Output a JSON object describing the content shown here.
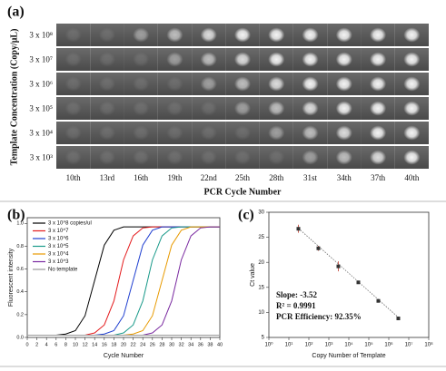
{
  "chart_data": [
    {
      "type": "image-grid",
      "title": "(a)",
      "row_labels": [
        "3 x 10⁸",
        "3 x 10⁷",
        "3 x 10⁶",
        "3 x 10⁵",
        "3 x 10⁴",
        "3 x 10³"
      ],
      "column_labels": [
        "10th",
        "13rd",
        "16th",
        "19th",
        "22nd",
        "25th",
        "28th",
        "31st",
        "34th",
        "37th",
        "40th"
      ],
      "xlabel": "PCR Cycle Number",
      "ylabel": "Template Concentration (Copy/μL)"
    },
    {
      "type": "line",
      "title": "(b)",
      "xlabel": "Cycle Number",
      "ylabel": "Fluorescent intensity",
      "x": [
        0,
        2,
        4,
        6,
        8,
        10,
        12,
        14,
        16,
        18,
        20,
        22,
        24,
        26,
        28,
        30,
        32,
        34,
        36,
        38,
        40
      ],
      "xlim": [
        0,
        40
      ],
      "ylim": [
        0,
        1.05
      ],
      "xticks": [
        0,
        2,
        4,
        6,
        8,
        10,
        12,
        14,
        16,
        18,
        20,
        22,
        24,
        26,
        28,
        30,
        32,
        34,
        36,
        38,
        40
      ],
      "yticks": [
        {
          "value": 0,
          "label": "0.0"
        },
        0.2,
        0.4,
        0.6,
        0.8,
        {
          "value": 1,
          "label": "1.0"
        }
      ],
      "legend": "upper left",
      "series": [
        {
          "name": "3 x 10^8 copies/ul",
          "color": "#000000",
          "values": [
            0.02,
            0.02,
            0.02,
            0.02,
            0.03,
            0.06,
            0.19,
            0.5,
            0.81,
            0.94,
            0.97,
            0.97,
            0.97,
            0.97,
            0.97,
            0.97,
            0.97,
            0.97,
            0.97,
            0.97,
            0.97
          ]
        },
        {
          "name": "3 x 10^7",
          "color": "#e41a1c",
          "values": [
            0.02,
            0.02,
            0.02,
            0.02,
            0.02,
            0.02,
            0.02,
            0.04,
            0.11,
            0.32,
            0.68,
            0.89,
            0.96,
            0.97,
            0.97,
            0.97,
            0.97,
            0.97,
            0.97,
            0.97,
            0.97
          ]
        },
        {
          "name": "3 x 10^6",
          "color": "#1f3fd0",
          "values": [
            0.02,
            0.02,
            0.02,
            0.02,
            0.02,
            0.02,
            0.02,
            0.02,
            0.03,
            0.06,
            0.19,
            0.5,
            0.81,
            0.94,
            0.97,
            0.97,
            0.97,
            0.97,
            0.97,
            0.97,
            0.97
          ]
        },
        {
          "name": "3 x 10^5",
          "color": "#1a9a8a",
          "values": [
            0.02,
            0.02,
            0.02,
            0.02,
            0.02,
            0.02,
            0.02,
            0.02,
            0.02,
            0.02,
            0.04,
            0.11,
            0.32,
            0.68,
            0.89,
            0.96,
            0.97,
            0.97,
            0.97,
            0.97,
            0.97
          ]
        },
        {
          "name": "3 x 10^4",
          "color": "#e89a00",
          "values": [
            0.02,
            0.02,
            0.02,
            0.02,
            0.02,
            0.02,
            0.02,
            0.02,
            0.02,
            0.02,
            0.02,
            0.03,
            0.06,
            0.19,
            0.5,
            0.81,
            0.94,
            0.97,
            0.97,
            0.97,
            0.97
          ]
        },
        {
          "name": "3 x 10^3",
          "color": "#7a2aa0",
          "values": [
            0.02,
            0.02,
            0.02,
            0.02,
            0.02,
            0.02,
            0.02,
            0.02,
            0.02,
            0.02,
            0.02,
            0.02,
            0.02,
            0.04,
            0.11,
            0.32,
            0.68,
            0.89,
            0.96,
            0.97,
            0.97
          ]
        },
        {
          "name": "No template",
          "color": "#9a9a9a",
          "values": [
            0.02,
            0.02,
            0.02,
            0.02,
            0.02,
            0.02,
            0.02,
            0.02,
            0.02,
            0.02,
            0.02,
            0.02,
            0.02,
            0.02,
            0.02,
            0.02,
            0.02,
            0.02,
            0.02,
            0.02,
            0.02
          ]
        }
      ]
    },
    {
      "type": "scatter",
      "title": "(c)",
      "xlabel": "Copy Number of Template",
      "ylabel": "Ct value",
      "xscale": "log",
      "xlim": [
        1,
        100000000
      ],
      "ylim": [
        5,
        30
      ],
      "xticks": [
        {
          "value": 1,
          "label": "10⁰"
        },
        {
          "value": 10,
          "label": "10¹"
        },
        {
          "value": 100,
          "label": "10²"
        },
        {
          "value": 1000,
          "label": "10³"
        },
        {
          "value": 10000,
          "label": "10⁴"
        },
        {
          "value": 100000,
          "label": "10⁵"
        },
        {
          "value": 1000000,
          "label": "10⁶"
        },
        {
          "value": 10000000,
          "label": "10⁷"
        },
        {
          "value": 100000000,
          "label": "10⁸"
        }
      ],
      "yticks": [
        5,
        10,
        15,
        20,
        25,
        30
      ],
      "x": [
        30,
        300,
        3000,
        30000,
        300000,
        3000000
      ],
      "values": [
        26.7,
        22.8,
        19.2,
        16.0,
        12.3,
        8.8
      ],
      "errors": [
        0.8,
        0.5,
        1.0,
        0.3,
        0.3,
        0.3
      ],
      "color": "#333333",
      "fit_line": {
        "x": [
          30,
          3000000
        ],
        "values": [
          26.8,
          9.0
        ]
      },
      "annotations": [
        "Slope: -3.52",
        "R² = 0.9991",
        "PCR Efficiency: 92.35%"
      ]
    }
  ]
}
